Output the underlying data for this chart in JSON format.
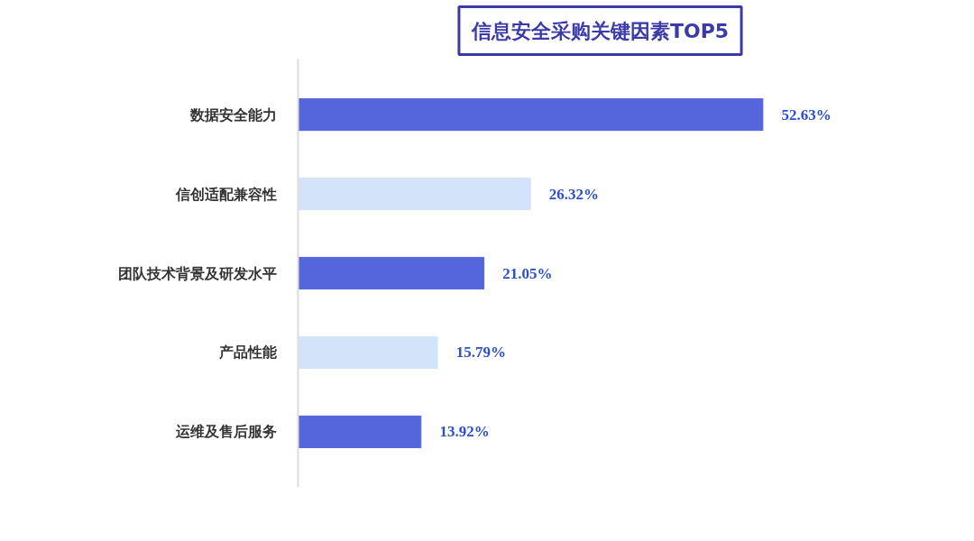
{
  "chart_data": {
    "type": "bar",
    "orientation": "horizontal",
    "title": "信息安全采购关键因素TOP5",
    "categories": [
      "数据安全能力",
      "信创适配兼容性",
      "团队技术背景及研发水平",
      "产品性能",
      "运维及售后服务"
    ],
    "values": [
      52.63,
      26.32,
      21.05,
      15.79,
      13.92
    ],
    "value_labels": [
      "52.63%",
      "26.32%",
      "21.05%",
      "15.79%",
      "13.92%"
    ],
    "colors": [
      "#5566dd",
      "#d3e4fa",
      "#5566dd",
      "#d3e4fa",
      "#5566dd"
    ],
    "grid": false
  }
}
